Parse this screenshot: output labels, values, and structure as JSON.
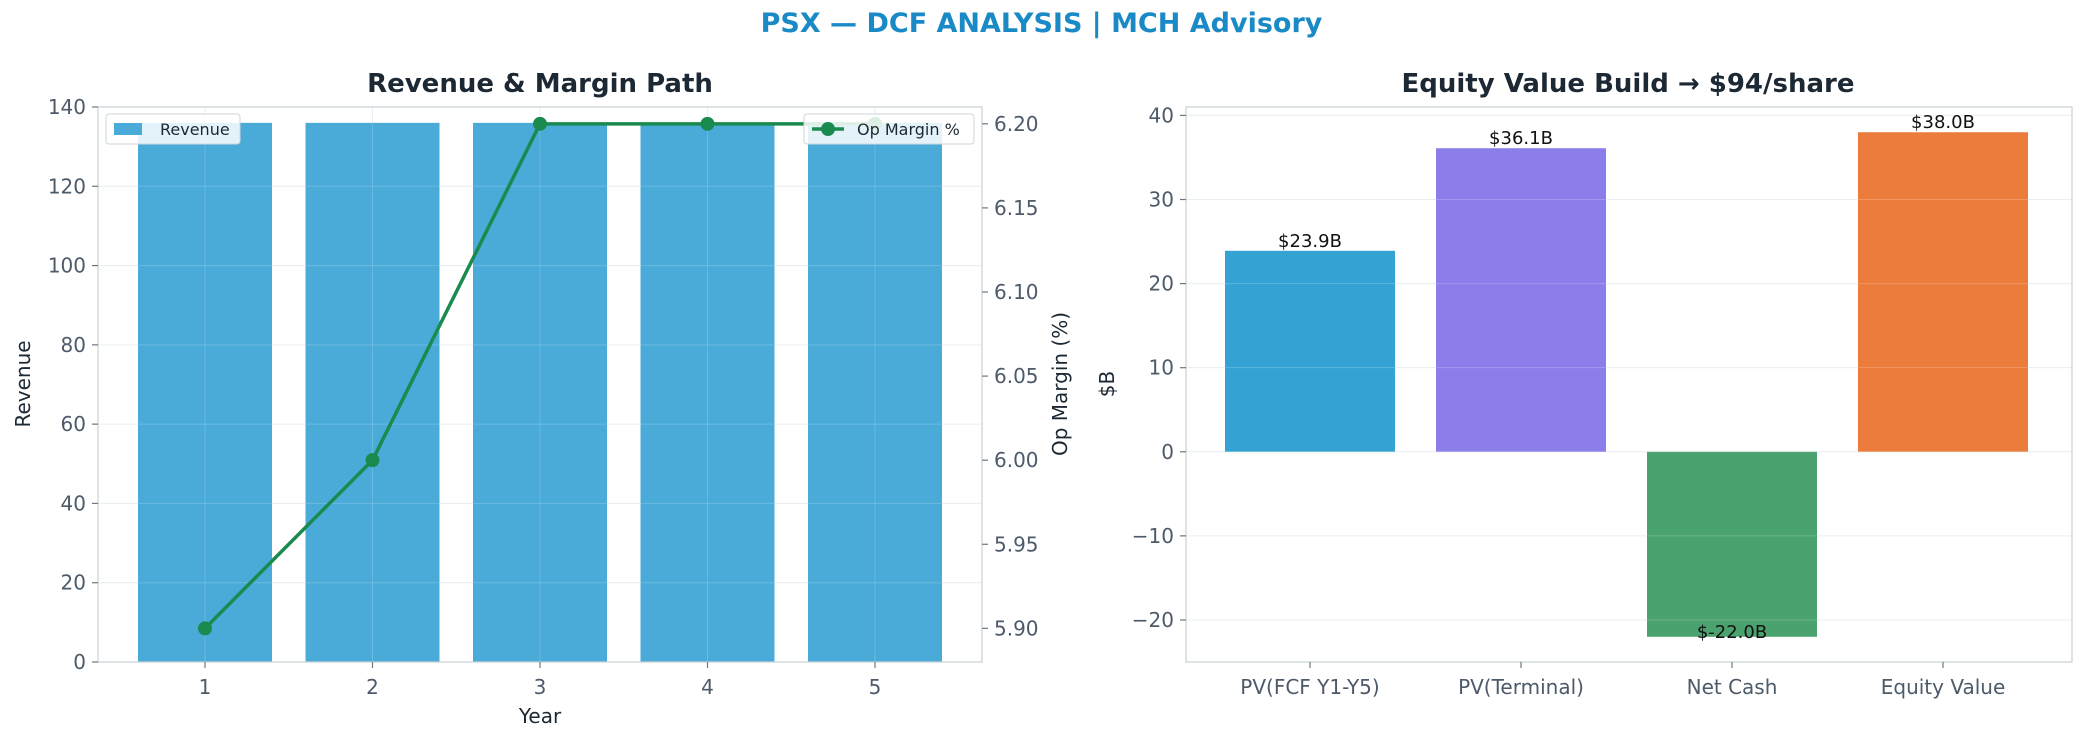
{
  "suptitle": "PSX — DCF ANALYSIS | MCH Advisory",
  "colors": {
    "title": "#1a8ac6",
    "revenue_bar": "#4aabd9",
    "margin_line": "#1b8a4f",
    "waterfall": [
      "#35a2d4",
      "#8b7eea",
      "#4aa26f",
      "#ec7c3c"
    ]
  },
  "chart_data": [
    {
      "type": "bar",
      "title": "Revenue & Margin Path",
      "xlabel": "Year",
      "ylabel": "Revenue",
      "y2label": "Op Margin (%)",
      "categories": [
        "1",
        "2",
        "3",
        "4",
        "5"
      ],
      "ylim": [
        0,
        140
      ],
      "y2lim": [
        5.88,
        6.21
      ],
      "yticks": [
        "0",
        "20",
        "40",
        "60",
        "80",
        "100",
        "120",
        "140"
      ],
      "y2ticks": [
        "5.90",
        "5.95",
        "6.00",
        "6.05",
        "6.10",
        "6.15",
        "6.20"
      ],
      "grid": true,
      "series": [
        {
          "name": "Revenue",
          "type": "bar",
          "axis": "left",
          "values": [
            136,
            136,
            136,
            136,
            136
          ]
        },
        {
          "name": "Op Margin %",
          "type": "line",
          "axis": "right",
          "values": [
            5.9,
            6.0,
            6.2,
            6.2,
            6.2
          ]
        }
      ],
      "legend": [
        {
          "label": "Revenue",
          "placement": "top-left"
        },
        {
          "label": "Op Margin %",
          "placement": "top-right"
        }
      ]
    },
    {
      "type": "bar",
      "title": "Equity Value Build → $94/share",
      "xlabel": "",
      "ylabel": "$B",
      "categories": [
        "PV(FCF Y1-Y5)",
        "PV(Terminal)",
        "Net Cash",
        "Equity Value"
      ],
      "values": [
        23.9,
        36.1,
        -22.0,
        38.0
      ],
      "data_labels": [
        "$23.9B",
        "$36.1B",
        "$-22.0B",
        "$38.0B"
      ],
      "ylim": [
        -25,
        41
      ],
      "yticks": [
        "40",
        "30",
        "20",
        "10",
        "0",
        "−10",
        "−20"
      ],
      "grid": true
    }
  ]
}
